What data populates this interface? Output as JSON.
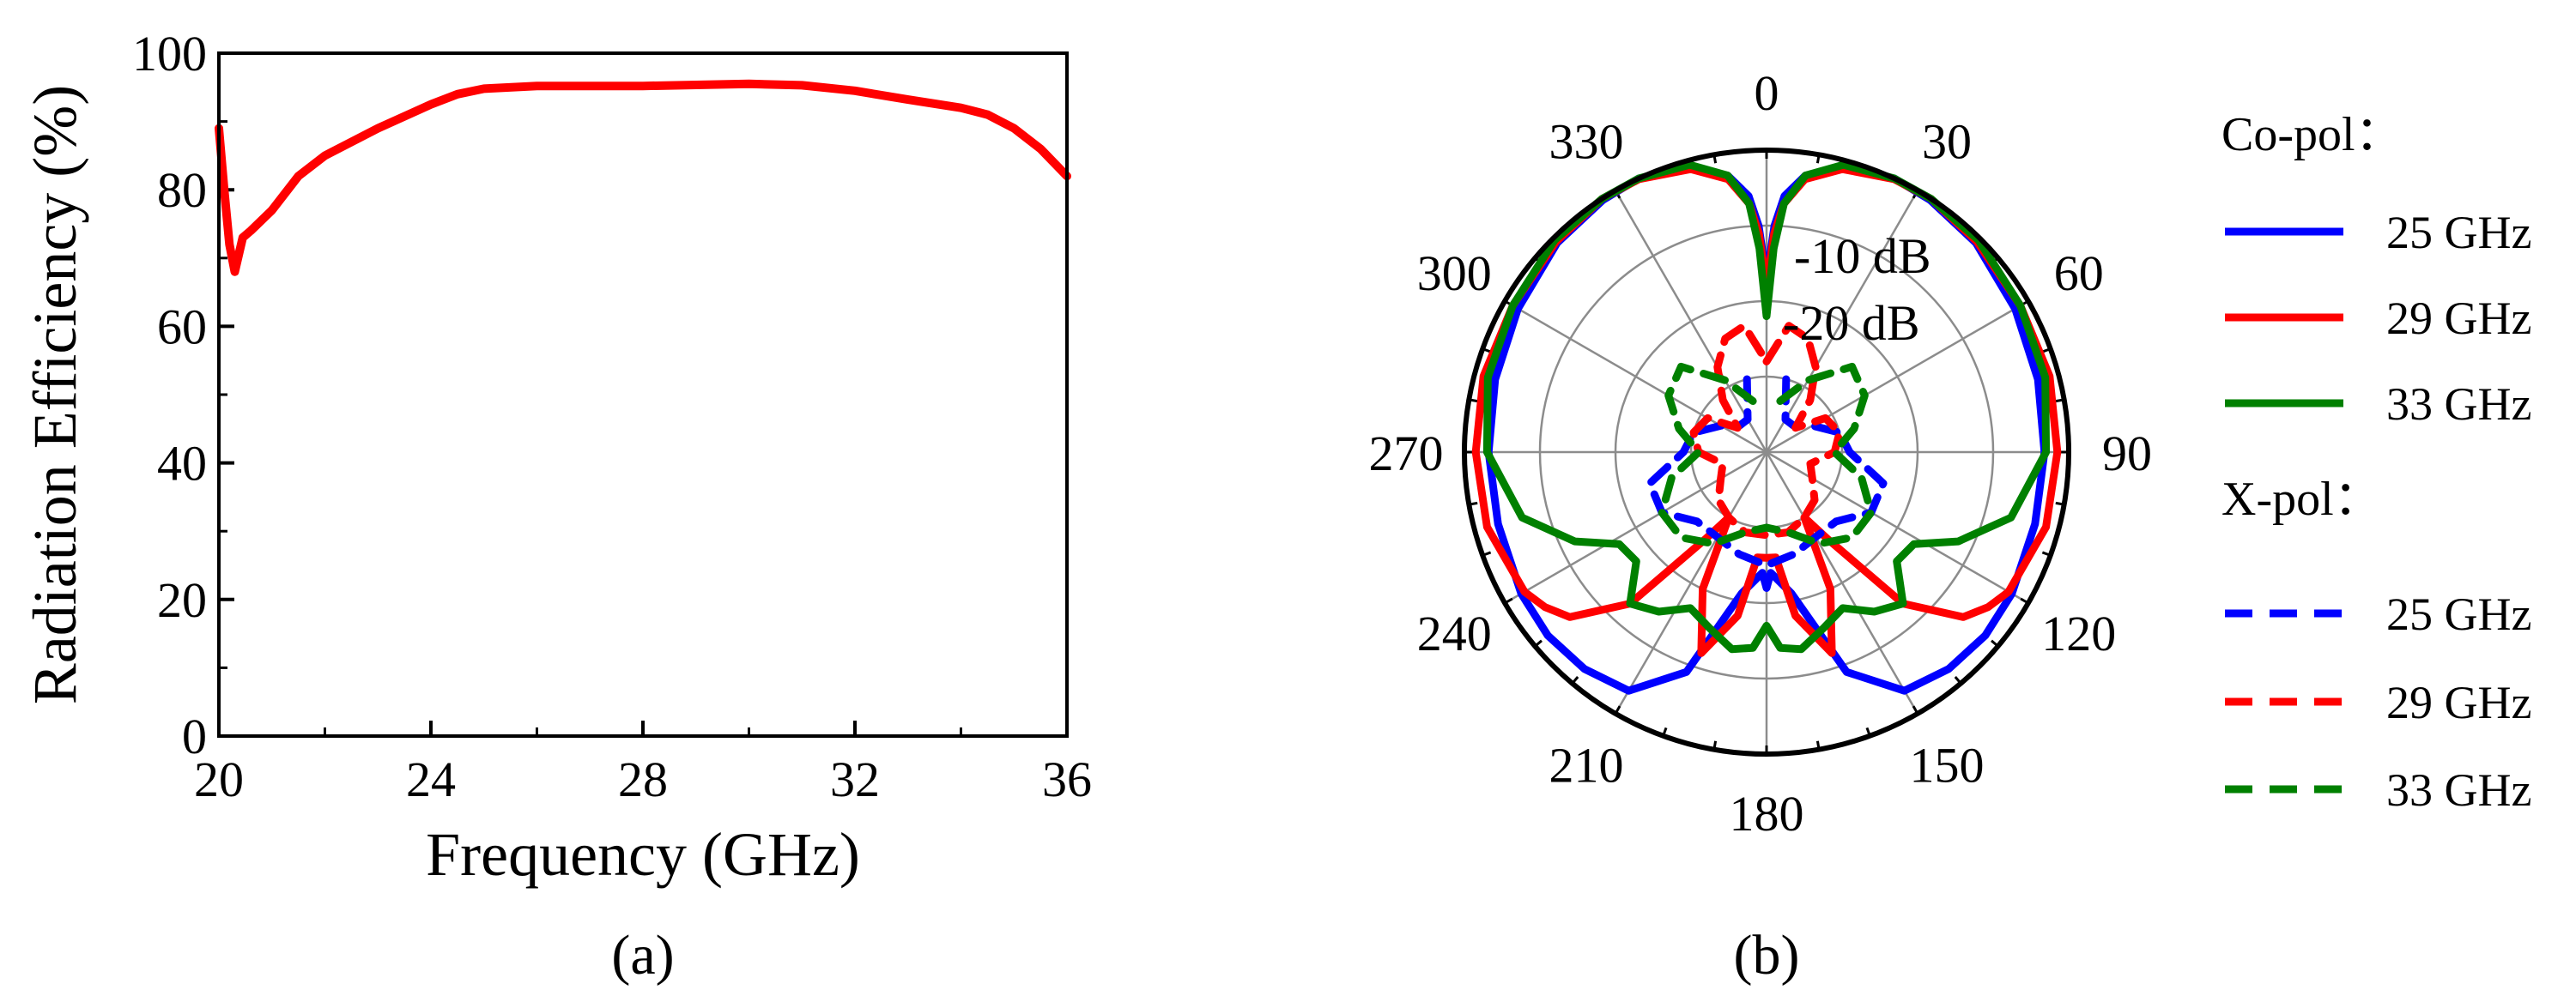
{
  "chart_data": [
    {
      "type": "line",
      "panel_label": "(a)",
      "xlabel": "Frequency (GHz)",
      "ylabel": "Radiation Efficiency (%)",
      "xlim": [
        20,
        36
      ],
      "ylim": [
        0,
        100
      ],
      "x_ticks": [
        20,
        24,
        28,
        32,
        36
      ],
      "y_ticks": [
        0,
        20,
        40,
        60,
        80,
        100
      ],
      "grid": false,
      "series": [
        {
          "color": "#ff0000",
          "x": [
            20.0,
            20.1,
            20.2,
            20.3,
            20.45,
            20.6,
            21.0,
            21.5,
            22.0,
            23.0,
            24.0,
            24.5,
            25.0,
            26.0,
            28.0,
            30.0,
            31.0,
            32.0,
            33.0,
            34.0,
            34.5,
            35.0,
            35.5,
            36.0
          ],
          "y": [
            89,
            80,
            72,
            68,
            73,
            74,
            77,
            82,
            85,
            89,
            92.5,
            94,
            94.8,
            95.2,
            95.2,
            95.5,
            95.3,
            94.5,
            93.2,
            92,
            91,
            89,
            86,
            82
          ]
        }
      ]
    },
    {
      "type": "polar",
      "panel_label": "(b)",
      "angle_ticks": [
        0,
        30,
        60,
        90,
        120,
        150,
        180,
        210,
        240,
        270,
        300,
        330
      ],
      "radial_range_db": [
        -40,
        0
      ],
      "radial_labels": [
        "-10 dB",
        "-20 dB"
      ],
      "grid": true,
      "legend_position": "right",
      "legend_groups": [
        "Co-pol：",
        "X-pol："
      ],
      "series": [
        {
          "name": "25 GHz",
          "group": "Co-pol",
          "style": "solid",
          "color": "#0000ff",
          "angles_deg": [
            0,
            2,
            4,
            8,
            15,
            25,
            33,
            45,
            60,
            75,
            90,
            105,
            120,
            130,
            140,
            150,
            160,
            170,
            178,
            180
          ],
          "gain_db": [
            -17,
            -10,
            -6,
            -3,
            -1,
            0,
            -0.2,
            -0.8,
            -2,
            -2.8,
            -3.2,
            -3.2,
            -2.5,
            -2.2,
            -2.5,
            -3.5,
            -9,
            -21,
            -24,
            -22
          ]
        },
        {
          "name": "29 GHz",
          "group": "Co-pol",
          "style": "solid",
          "color": "#ff0000",
          "angles_deg": [
            0,
            2,
            4,
            8,
            15,
            25,
            33,
            45,
            60,
            75,
            90,
            105,
            120,
            125,
            130,
            138,
            145,
            150,
            155,
            162,
            170,
            175,
            180
          ],
          "gain_db": [
            -18,
            -11,
            -7,
            -3.5,
            -1.2,
            -0.1,
            0,
            -0.6,
            -1.2,
            -1.2,
            -1.5,
            -1.7,
            -3,
            -4.2,
            -6,
            -13,
            -26,
            -30,
            -20,
            -12,
            -18,
            -26,
            -26
          ]
        },
        {
          "name": "33 GHz",
          "group": "Co-pol",
          "style": "solid",
          "color": "#008000",
          "angles_deg": [
            0,
            2,
            4,
            8,
            15,
            25,
            33,
            45,
            60,
            75,
            90,
            105,
            115,
            122,
            130,
            138,
            146,
            154,
            162,
            170,
            176,
            180
          ],
          "gain_db": [
            -22,
            -13,
            -7,
            -3,
            -0.6,
            0,
            0,
            -0.3,
            -1.2,
            -1.8,
            -3,
            -6.5,
            -12,
            -17,
            -17.5,
            -13,
            -14.5,
            -17,
            -15.5,
            -13.5,
            -14,
            -17
          ]
        },
        {
          "name": "25 GHz",
          "group": "X-pol",
          "style": "dashed",
          "color": "#0000ff",
          "angles_deg": [
            15,
            30,
            45,
            60,
            75,
            90,
            105,
            120,
            135,
            150,
            165,
            180
          ],
          "gain_db": [
            -30,
            -35,
            -35,
            -33,
            -30,
            -29,
            -24,
            -24,
            -27,
            -27,
            -26,
            -25
          ]
        },
        {
          "name": "29 GHz",
          "group": "X-pol",
          "style": "dashed",
          "color": "#ff0000",
          "angles_deg": [
            0,
            10,
            20,
            30,
            40,
            50,
            60,
            75,
            90,
            105,
            120,
            135,
            150,
            165,
            180
          ],
          "gain_db": [
            -28,
            -23,
            -24,
            -27,
            -31,
            -35,
            -31,
            -30,
            -31,
            -34,
            -33,
            -31,
            -30,
            -29,
            -29
          ]
        },
        {
          "name": "33 GHz",
          "group": "X-pol",
          "style": "dashed",
          "color": "#008000",
          "angles_deg": [
            15,
            30,
            45,
            60,
            75,
            90,
            105,
            120,
            135,
            150,
            165,
            180
          ],
          "gain_db": [
            -33,
            -29,
            -24,
            -25,
            -28,
            -31,
            -27,
            -24,
            -24,
            -26,
            -29,
            -30
          ]
        }
      ]
    }
  ]
}
